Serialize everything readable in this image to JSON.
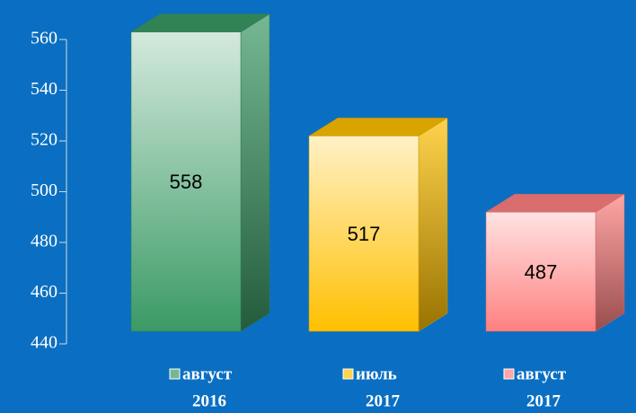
{
  "chart_data": {
    "type": "bar3d",
    "categories": [
      [
        "август",
        "2016"
      ],
      [
        "июль",
        "2017"
      ],
      [
        "август",
        "2017"
      ]
    ],
    "values": [
      558,
      517,
      487
    ],
    "colors": [
      "#3a9a65",
      "#ffc000",
      "#ff8080"
    ],
    "ylim": [
      440,
      560
    ],
    "yticks": [
      440,
      460,
      480,
      500,
      520,
      540,
      560
    ]
  }
}
